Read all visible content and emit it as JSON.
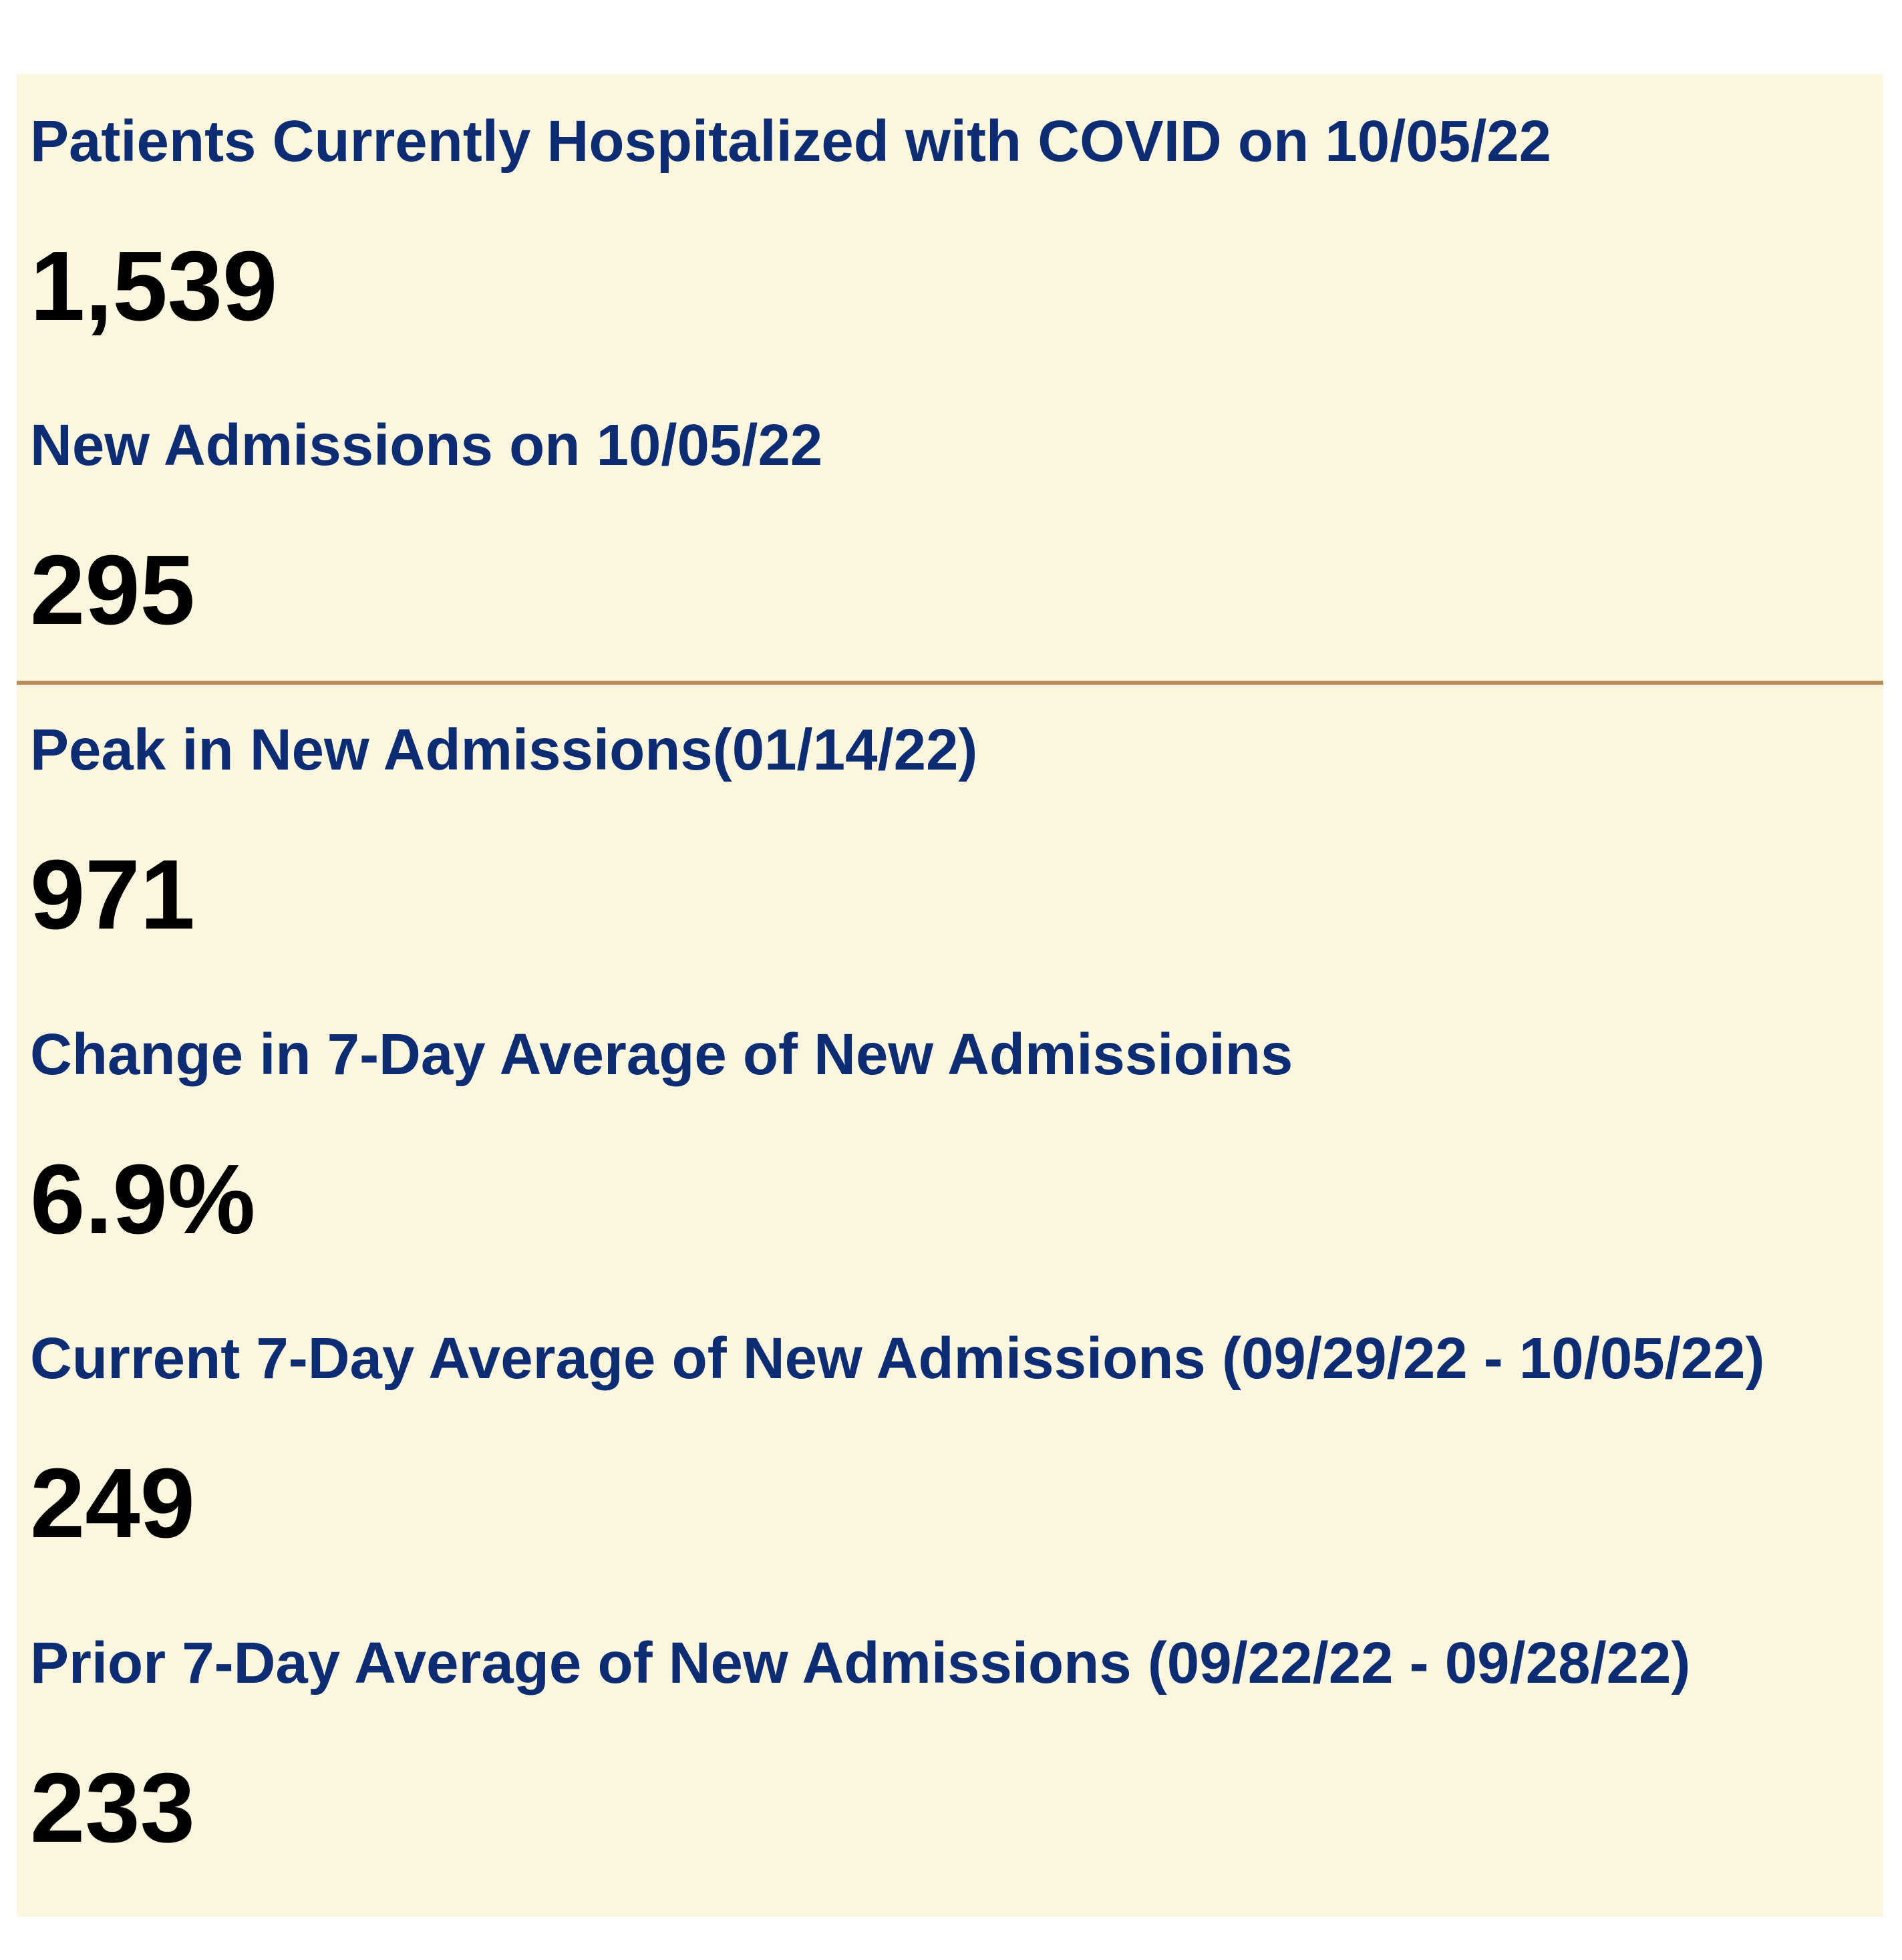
{
  "stats": [
    {
      "label": "Patients Currently Hospitalized with COVID on 10/05/22",
      "value": "1,539"
    },
    {
      "label": "New Admissions on 10/05/22",
      "value": "295"
    },
    {
      "label": "Peak in New Admissions(01/14/22)",
      "value": "971"
    },
    {
      "label": "Change in 7-Day Average of New Admissioins",
      "value": "6.9%"
    },
    {
      "label": "Current 7-Day Average of New Admissions (09/29/22 - 10/05/22)",
      "value": "249"
    },
    {
      "label": "Prior 7-Day Average of New Admissions (09/22/22 - 09/28/22)",
      "value": "233"
    }
  ],
  "colors": {
    "panel_background": "#fdf6de",
    "label_text": "#0c2c74",
    "value_text": "#000000",
    "divider": "#b88d5b"
  }
}
